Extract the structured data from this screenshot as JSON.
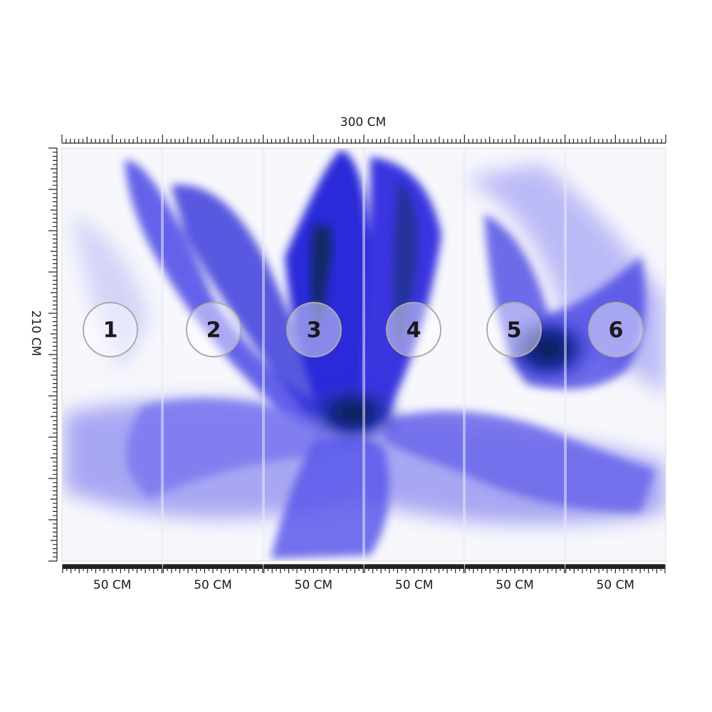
{
  "dimensions": {
    "width": "300 CM",
    "height": "210 CM"
  },
  "panels": [
    {
      "number": 1,
      "width": "50 CM"
    },
    {
      "number": 2,
      "width": "50 CM"
    },
    {
      "number": 3,
      "width": "50 CM"
    },
    {
      "number": 4,
      "width": "50 CM"
    },
    {
      "number": 5,
      "width": "50 CM"
    },
    {
      "number": 6,
      "width": "50 CM"
    }
  ]
}
